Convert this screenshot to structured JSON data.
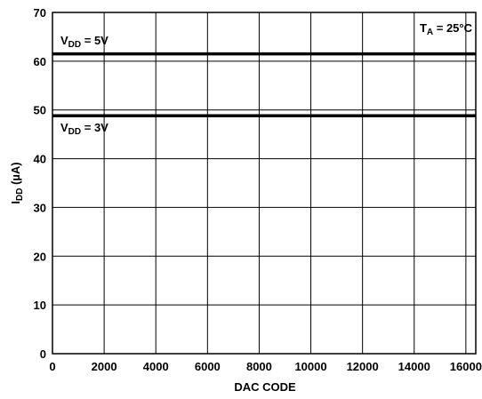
{
  "chart_data": {
    "type": "line",
    "xlabel": "DAC CODE",
    "ylabel": {
      "main": "I",
      "sub": "DD",
      "rest": " (µA)"
    },
    "xlim": [
      0,
      16383
    ],
    "ylim": [
      0,
      70
    ],
    "x_ticks": [
      0,
      2000,
      4000,
      6000,
      8000,
      10000,
      12000,
      14000,
      16000
    ],
    "y_ticks": [
      0,
      10,
      20,
      30,
      40,
      50,
      60,
      70
    ],
    "grid": true,
    "series": [
      {
        "label": {
          "main": "V",
          "sub": "DD",
          "rest": " = 5V"
        },
        "x": [
          0,
          16383
        ],
        "y": [
          61.5,
          61.5
        ]
      },
      {
        "label": {
          "main": "V",
          "sub": "DD",
          "rest": " = 3V"
        },
        "x": [
          0,
          16383
        ],
        "y": [
          48.8,
          48.8
        ]
      }
    ],
    "annotation": {
      "main": "T",
      "sub": "A",
      "rest": " = 25°C"
    },
    "colors": {
      "line": "#000000",
      "grid": "#000000",
      "background": "#ffffff"
    }
  }
}
